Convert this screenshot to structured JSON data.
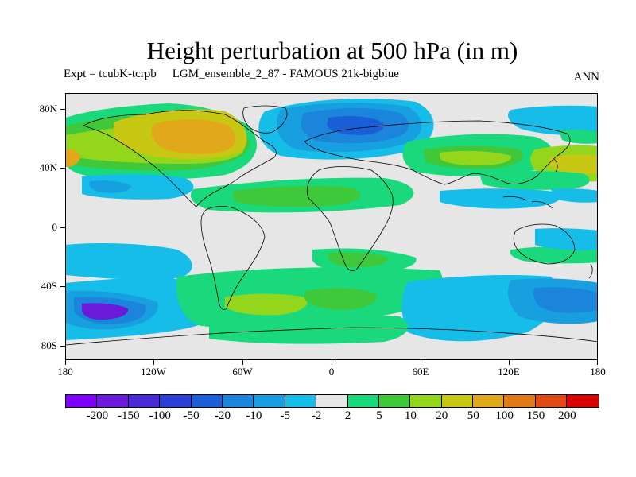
{
  "title": "Height perturbation at 500 hPa (in m)",
  "subtitle": {
    "expt": "Expt = tcubK-tcrpb",
    "run": "LGM_ensemble_2_87 - FAMOUS 21k-bigblue"
  },
  "season": "ANN",
  "axes": {
    "lat_labels": [
      "80N",
      "40N",
      "0",
      "40S",
      "80S"
    ],
    "lon_labels": [
      "180",
      "120W",
      "60W",
      "0",
      "60E",
      "120E",
      "180"
    ]
  },
  "colorbar": {
    "colors": [
      "#7f00ff",
      "#6a1ad8",
      "#4a2ad6",
      "#2a3fd6",
      "#1a5fd8",
      "#1a85da",
      "#189fe0",
      "#15bde8",
      "#e6e6e6",
      "#1ad97c",
      "#3ec83a",
      "#93d61c",
      "#c8c814",
      "#e0a81a",
      "#e07a14",
      "#e04a14",
      "#d80000"
    ],
    "labels": [
      "-200",
      "-150",
      "-100",
      "-50",
      "-20",
      "-10",
      "-5",
      "-2",
      "2",
      "5",
      "10",
      "20",
      "50",
      "100",
      "150",
      "200"
    ]
  }
}
